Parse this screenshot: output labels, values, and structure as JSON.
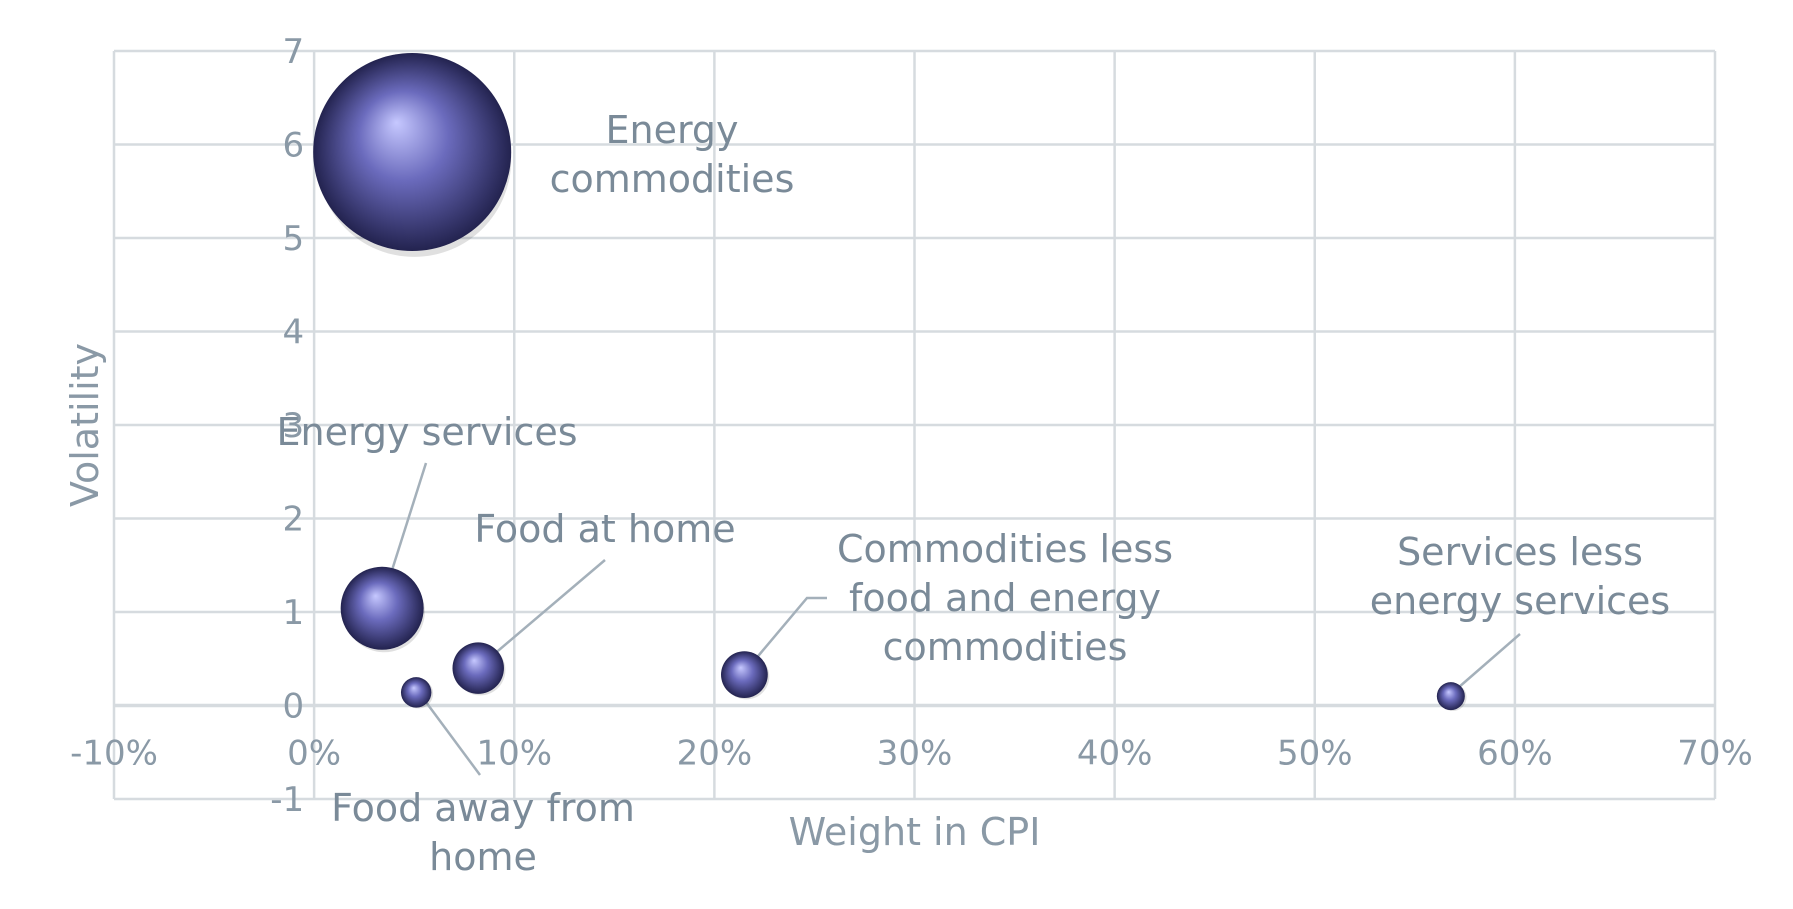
{
  "chart_data": {
    "type": "bubble",
    "xlabel": "Weight in CPI",
    "ylabel": "Volatility",
    "xlim": [
      -0.1,
      0.7
    ],
    "ylim": [
      -1,
      7
    ],
    "x_ticks": [
      {
        "value": -0.1,
        "label": "-10%"
      },
      {
        "value": 0.0,
        "label": "0%"
      },
      {
        "value": 0.1,
        "label": "10%"
      },
      {
        "value": 0.2,
        "label": "20%"
      },
      {
        "value": 0.3,
        "label": "30%"
      },
      {
        "value": 0.4,
        "label": "40%"
      },
      {
        "value": 0.5,
        "label": "50%"
      },
      {
        "value": 0.6,
        "label": "60%"
      },
      {
        "value": 0.7,
        "label": "70%"
      }
    ],
    "y_ticks": [
      {
        "value": -1,
        "label": "-1"
      },
      {
        "value": 0,
        "label": "0"
      },
      {
        "value": 1,
        "label": "1"
      },
      {
        "value": 2,
        "label": "2"
      },
      {
        "value": 3,
        "label": "3"
      },
      {
        "value": 4,
        "label": "4"
      },
      {
        "value": 5,
        "label": "5"
      },
      {
        "value": 6,
        "label": "6"
      },
      {
        "value": 7,
        "label": "7"
      }
    ],
    "grid": true,
    "bubble_color": "#6b6bbd",
    "bubble_highlight": "#c6c8ff",
    "bubble_shadow": "#23234f",
    "points": [
      {
        "name": "Energy commodities",
        "label_lines": [
          "Energy",
          "commodities"
        ],
        "x": 0.049,
        "y": 5.92,
        "size": 5.92
      },
      {
        "name": "Energy services",
        "label_lines": [
          "Energy services"
        ],
        "x": 0.034,
        "y": 1.04,
        "size": 1.04
      },
      {
        "name": "Food at home",
        "label_lines": [
          "Food at home"
        ],
        "x": 0.082,
        "y": 0.4,
        "size": 0.4
      },
      {
        "name": "Food away from home",
        "label_lines": [
          "Food away from",
          "home"
        ],
        "x": 0.051,
        "y": 0.14,
        "size": 0.14
      },
      {
        "name": "Commodities less food and energy commodities",
        "label_lines": [
          "Commodities less",
          "food and energy",
          "commodities"
        ],
        "x": 0.215,
        "y": 0.33,
        "size": 0.33
      },
      {
        "name": "Services less energy services",
        "label_lines": [
          "Services less",
          "energy services"
        ],
        "x": 0.568,
        "y": 0.1,
        "size": 0.1
      }
    ]
  }
}
